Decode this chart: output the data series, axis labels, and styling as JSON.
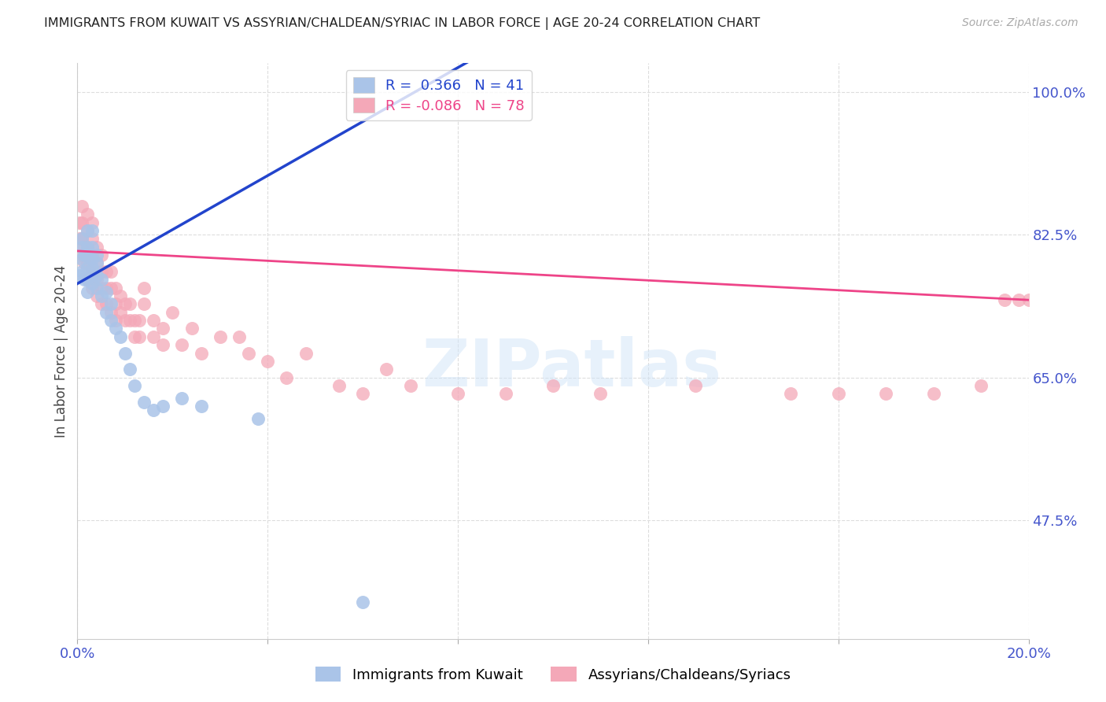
{
  "title": "IMMIGRANTS FROM KUWAIT VS ASSYRIAN/CHALDEAN/SYRIAC IN LABOR FORCE | AGE 20-24 CORRELATION CHART",
  "source": "Source: ZipAtlas.com",
  "ylabel": "In Labor Force | Age 20-24",
  "xlim": [
    0.0,
    0.2
  ],
  "ylim": [
    0.33,
    1.035
  ],
  "yticks": [
    0.475,
    0.65,
    0.825,
    1.0
  ],
  "ytick_labels": [
    "47.5%",
    "65.0%",
    "82.5%",
    "100.0%"
  ],
  "blue_r": 0.366,
  "blue_n": 41,
  "pink_r": -0.086,
  "pink_n": 78,
  "blue_color": "#aac4e8",
  "pink_color": "#f4a8b8",
  "blue_line_color": "#2244cc",
  "pink_line_color": "#ee4488",
  "watermark": "ZIPatlas",
  "legend_label_blue": "Immigrants from Kuwait",
  "legend_label_pink": "Assyrians/Chaldeans/Syriacs",
  "background_color": "#ffffff",
  "grid_color": "#dddddd",
  "blue_trend_x0": 0.0,
  "blue_trend_y0": 0.765,
  "blue_trend_x1": 0.065,
  "blue_trend_y1": 0.98,
  "pink_trend_x0": 0.0,
  "pink_trend_y0": 0.805,
  "pink_trend_x1": 0.2,
  "pink_trend_y1": 0.745,
  "blue_x": [
    0.0005,
    0.001,
    0.001,
    0.001,
    0.001,
    0.0015,
    0.0015,
    0.002,
    0.002,
    0.002,
    0.002,
    0.002,
    0.002,
    0.003,
    0.003,
    0.003,
    0.003,
    0.003,
    0.003,
    0.004,
    0.004,
    0.004,
    0.004,
    0.005,
    0.005,
    0.006,
    0.006,
    0.007,
    0.007,
    0.008,
    0.009,
    0.01,
    0.011,
    0.012,
    0.014,
    0.016,
    0.018,
    0.022,
    0.026,
    0.038,
    0.06
  ],
  "blue_y": [
    0.775,
    0.78,
    0.795,
    0.81,
    0.82,
    0.77,
    0.8,
    0.755,
    0.77,
    0.785,
    0.8,
    0.81,
    0.83,
    0.765,
    0.775,
    0.785,
    0.795,
    0.81,
    0.83,
    0.76,
    0.775,
    0.79,
    0.8,
    0.75,
    0.77,
    0.73,
    0.755,
    0.72,
    0.74,
    0.71,
    0.7,
    0.68,
    0.66,
    0.64,
    0.62,
    0.61,
    0.615,
    0.625,
    0.615,
    0.6,
    0.375
  ],
  "pink_x": [
    0.0005,
    0.0005,
    0.001,
    0.001,
    0.001,
    0.001,
    0.0015,
    0.0015,
    0.002,
    0.002,
    0.002,
    0.002,
    0.002,
    0.003,
    0.003,
    0.003,
    0.003,
    0.003,
    0.004,
    0.004,
    0.004,
    0.004,
    0.005,
    0.005,
    0.005,
    0.005,
    0.006,
    0.006,
    0.006,
    0.007,
    0.007,
    0.007,
    0.008,
    0.008,
    0.008,
    0.009,
    0.009,
    0.01,
    0.01,
    0.011,
    0.011,
    0.012,
    0.012,
    0.013,
    0.013,
    0.014,
    0.014,
    0.016,
    0.016,
    0.018,
    0.018,
    0.02,
    0.022,
    0.024,
    0.026,
    0.03,
    0.034,
    0.036,
    0.04,
    0.044,
    0.048,
    0.055,
    0.06,
    0.065,
    0.07,
    0.08,
    0.09,
    0.1,
    0.11,
    0.13,
    0.15,
    0.16,
    0.17,
    0.18,
    0.19,
    0.195,
    0.198,
    0.2
  ],
  "pink_y": [
    0.82,
    0.84,
    0.8,
    0.82,
    0.84,
    0.86,
    0.79,
    0.81,
    0.77,
    0.79,
    0.81,
    0.83,
    0.85,
    0.76,
    0.78,
    0.8,
    0.82,
    0.84,
    0.75,
    0.77,
    0.79,
    0.81,
    0.74,
    0.76,
    0.78,
    0.8,
    0.74,
    0.76,
    0.78,
    0.73,
    0.76,
    0.78,
    0.72,
    0.74,
    0.76,
    0.73,
    0.75,
    0.72,
    0.74,
    0.72,
    0.74,
    0.7,
    0.72,
    0.7,
    0.72,
    0.74,
    0.76,
    0.7,
    0.72,
    0.69,
    0.71,
    0.73,
    0.69,
    0.71,
    0.68,
    0.7,
    0.7,
    0.68,
    0.67,
    0.65,
    0.68,
    0.64,
    0.63,
    0.66,
    0.64,
    0.63,
    0.63,
    0.64,
    0.63,
    0.64,
    0.63,
    0.63,
    0.63,
    0.63,
    0.64,
    0.745,
    0.745,
    0.745
  ]
}
